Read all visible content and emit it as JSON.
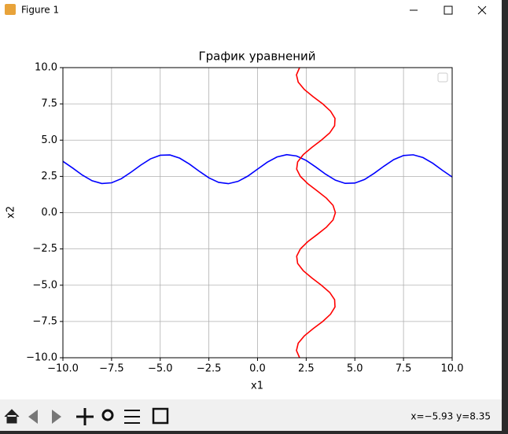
{
  "window": {
    "title": "Figure 1",
    "status": "x=−5.93 y=8.35"
  },
  "chart_data": {
    "type": "line",
    "title": "График уравнений",
    "x_label": "x1",
    "y_label": "x2",
    "xlim": [
      -10,
      10
    ],
    "ylim": [
      -10,
      10
    ],
    "xticks": [
      {
        "value": -10,
        "label": "−10.0"
      },
      {
        "value": -7.5,
        "label": "−7.5"
      },
      {
        "value": -5,
        "label": "−5.0"
      },
      {
        "value": -2.5,
        "label": "−2.5"
      },
      {
        "value": 0,
        "label": "0.0"
      },
      {
        "value": 2.5,
        "label": "2.5"
      },
      {
        "value": 5,
        "label": "5.0"
      },
      {
        "value": 7.5,
        "label": "7.5"
      },
      {
        "value": 10,
        "label": "10.0"
      }
    ],
    "yticks": [
      {
        "value": -10,
        "label": "−10.0"
      },
      {
        "value": -7.5,
        "label": "−7.5"
      },
      {
        "value": -5,
        "label": "−5.0"
      },
      {
        "value": -2.5,
        "label": "−2.5"
      },
      {
        "value": 0,
        "label": "0.0"
      },
      {
        "value": 2.5,
        "label": "2.5"
      },
      {
        "value": 5,
        "label": "5.0"
      },
      {
        "value": 7.5,
        "label": "7.5"
      },
      {
        "value": 10,
        "label": "10.0"
      }
    ],
    "grid": true,
    "legend": "upper right",
    "series": [
      {
        "color": "#0000ff",
        "x": [
          -10,
          -9.5,
          -9,
          -8.5,
          -8,
          -7.5,
          -7,
          -6.5,
          -6,
          -5.5,
          -5,
          -4.5,
          -4,
          -3.5,
          -3,
          -2.5,
          -2,
          -1.5,
          -1,
          -0.5,
          0,
          0.5,
          1,
          1.5,
          2,
          2.5,
          3,
          3.5,
          4,
          4.5,
          5,
          5.5,
          6,
          6.5,
          7,
          7.5,
          8,
          8.5,
          9,
          9.5,
          10
        ],
        "values": [
          3.54,
          3.08,
          2.59,
          2.2,
          2.01,
          2.06,
          2.34,
          2.79,
          3.28,
          3.71,
          3.96,
          3.98,
          3.76,
          3.35,
          2.86,
          2.4,
          2.09,
          2.0,
          2.16,
          2.52,
          3,
          3.48,
          3.84,
          4.0,
          3.91,
          3.6,
          3.14,
          2.65,
          2.24,
          2.02,
          2.04,
          2.29,
          2.72,
          3.21,
          3.66,
          3.94,
          3.99,
          3.8,
          3.41,
          2.92,
          2.46
        ]
      },
      {
        "color": "#ff0000",
        "x": [
          2.16,
          2.0,
          2.09,
          2.4,
          2.85,
          3.35,
          3.75,
          3.98,
          3.96,
          3.71,
          3.28,
          2.79,
          2.35,
          2.06,
          2.01,
          2.2,
          2.58,
          3.07,
          3.54,
          3.88,
          4,
          3.88,
          3.54,
          3.07,
          2.58,
          2.2,
          2.01,
          2.06,
          2.35,
          2.79,
          3.28,
          3.71,
          3.96,
          3.98,
          3.75,
          3.35,
          2.85,
          2.4,
          2.09,
          2.0,
          2.16
        ],
        "values": [
          -10,
          -9.5,
          -9,
          -8.5,
          -8,
          -7.5,
          -7,
          -6.5,
          -6,
          -5.5,
          -5,
          -4.5,
          -4,
          -3.5,
          -3,
          -2.5,
          -2,
          -1.5,
          -1,
          -0.5,
          0,
          0.5,
          1,
          1.5,
          2,
          2.5,
          3,
          3.5,
          4,
          4.5,
          5,
          5.5,
          6,
          6.5,
          7,
          7.5,
          8,
          8.5,
          9,
          9.5,
          10
        ]
      }
    ]
  }
}
